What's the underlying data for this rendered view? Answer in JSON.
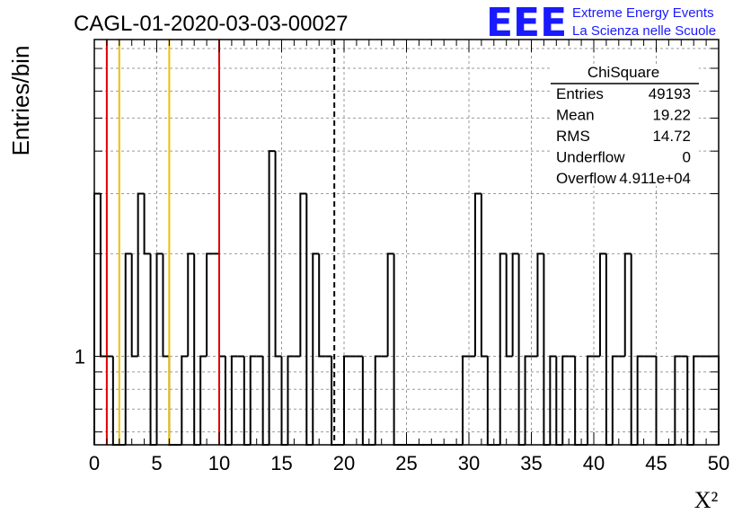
{
  "header": {
    "run_title": "CAGL-01-2020-03-03-00027",
    "logo_text": "EEE",
    "logo_line1": "Extreme Energy Events",
    "logo_line2": "La Scienza nelle Scuole",
    "logo_color": "#1a1aff"
  },
  "stats_box": {
    "title": "ChiSquare",
    "rows": [
      {
        "label": "Entries",
        "value": "49193"
      },
      {
        "label": "Mean",
        "value": "19.22"
      },
      {
        "label": "RMS",
        "value": "14.72"
      },
      {
        "label": "Underflow",
        "value": "0"
      },
      {
        "label": "Overflow",
        "value": "4.911e+04"
      }
    ]
  },
  "chart_data": {
    "type": "histogram",
    "ylabel": "Entries/bin",
    "xlabel": "X²",
    "xlim": [
      0,
      50
    ],
    "ylim": [
      0.55,
      8.5
    ],
    "log_y": true,
    "grid": true,
    "bin_width": 0.5,
    "x_ticks": [
      0,
      5,
      10,
      15,
      20,
      25,
      30,
      35,
      40,
      45,
      50
    ],
    "y_ticks": [
      1
    ],
    "bin_counts": [
      3,
      1,
      1,
      0,
      0,
      2,
      1,
      3,
      2,
      0,
      2,
      1,
      0,
      0,
      1,
      2,
      0,
      1,
      2,
      2,
      1,
      0,
      1,
      1,
      0,
      1,
      1,
      0,
      4,
      1,
      0,
      1,
      1,
      3,
      0,
      2,
      1,
      1,
      0,
      0,
      1,
      1,
      1,
      0,
      0,
      1,
      1,
      2,
      0,
      0,
      0,
      0,
      0,
      0,
      0,
      0,
      0,
      0,
      0,
      1,
      1,
      3,
      1,
      0,
      0,
      2,
      1,
      2,
      0,
      1,
      1,
      2,
      0,
      1,
      0,
      1,
      1,
      0,
      0,
      1,
      1,
      2,
      0,
      1,
      1,
      2,
      0,
      1,
      1,
      1,
      0,
      0,
      0,
      1,
      1,
      0,
      1,
      1,
      1,
      1
    ],
    "vertical_lines": [
      {
        "x": 1,
        "color": "#e00000",
        "style": "solid"
      },
      {
        "x": 2,
        "color": "#f0c000",
        "style": "solid"
      },
      {
        "x": 6,
        "color": "#f0c000",
        "style": "solid"
      },
      {
        "x": 10,
        "color": "#e00000",
        "style": "solid"
      },
      {
        "x": 19.22,
        "color": "#000000",
        "style": "dashed"
      }
    ]
  }
}
